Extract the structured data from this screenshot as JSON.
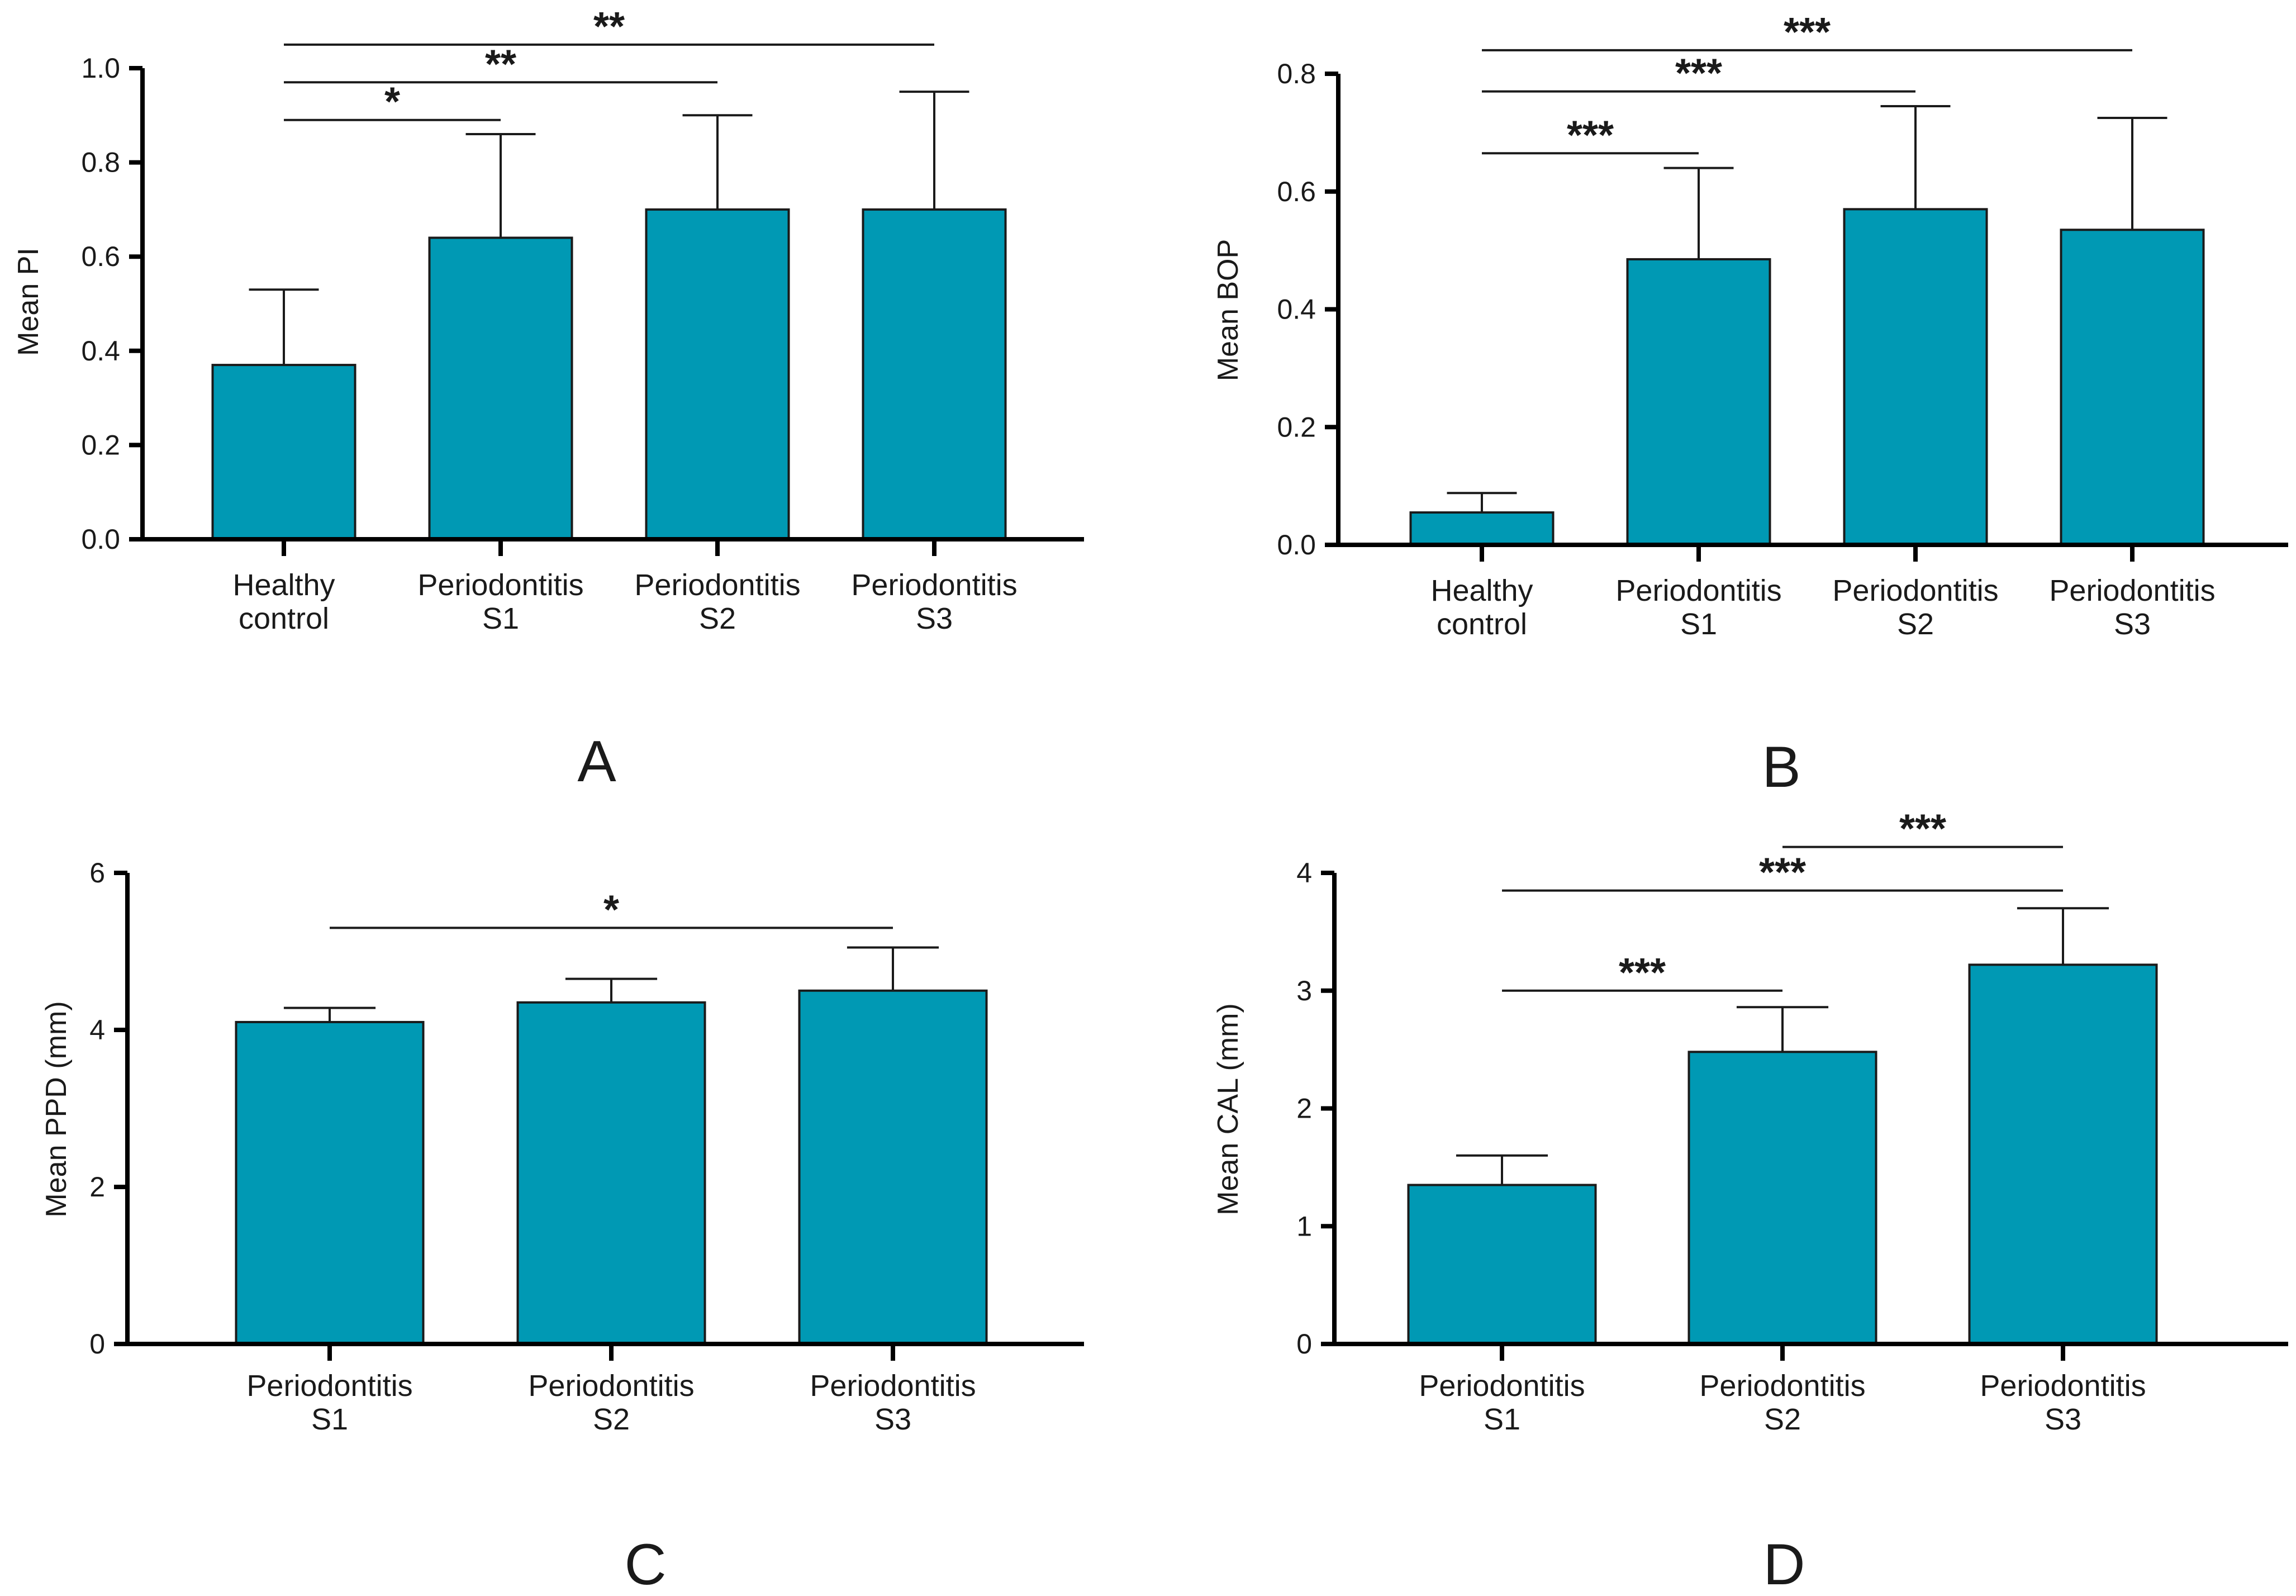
{
  "colors": {
    "bar": "#0099B4",
    "axis": "#000000",
    "text": "#1a1a1a"
  },
  "chart_data": [
    {
      "type": "bar",
      "panel": "A",
      "ylabel": "Mean PI",
      "ylim": [
        0,
        1.0
      ],
      "yticks": [
        0.0,
        0.2,
        0.4,
        0.6,
        0.8,
        1.0
      ],
      "ytick_labels": [
        "0.0",
        "0.2",
        "0.4",
        "0.6",
        "0.8",
        "1.0"
      ],
      "categories": [
        [
          "Healthy",
          "control"
        ],
        [
          "Periodontitis",
          "S1"
        ],
        [
          "Periodontitis",
          "S2"
        ],
        [
          "Periodontitis",
          "S3"
        ]
      ],
      "values": [
        0.37,
        0.64,
        0.7,
        0.7
      ],
      "errors": [
        0.16,
        0.22,
        0.2,
        0.25
      ],
      "significance": [
        {
          "from": 0,
          "to": 1,
          "y": 0.89,
          "label": "*"
        },
        {
          "from": 0,
          "to": 2,
          "y": 0.97,
          "label": "**"
        },
        {
          "from": 0,
          "to": 3,
          "y": 1.05,
          "label": "**"
        }
      ]
    },
    {
      "type": "bar",
      "panel": "B",
      "ylabel": "Mean BOP",
      "ylim": [
        0,
        0.8
      ],
      "yticks": [
        0.0,
        0.2,
        0.4,
        0.6,
        0.8
      ],
      "ytick_labels": [
        "0.0",
        "0.2",
        "0.4",
        "0.6",
        "0.8"
      ],
      "categories": [
        [
          "Healthy",
          "control"
        ],
        [
          "Periodontitis",
          "S1"
        ],
        [
          "Periodontitis",
          "S2"
        ],
        [
          "Periodontitis",
          "S3"
        ]
      ],
      "values": [
        0.055,
        0.485,
        0.57,
        0.535
      ],
      "errors": [
        0.033,
        0.155,
        0.175,
        0.19
      ],
      "significance": [
        {
          "from": 0,
          "to": 1,
          "y": 0.665,
          "label": "***"
        },
        {
          "from": 0,
          "to": 2,
          "y": 0.77,
          "label": "***"
        },
        {
          "from": 0,
          "to": 3,
          "y": 0.84,
          "label": "***"
        }
      ]
    },
    {
      "type": "bar",
      "panel": "C",
      "ylabel": "Mean PPD (mm)",
      "ylim": [
        0,
        6
      ],
      "yticks": [
        0,
        2,
        4,
        6
      ],
      "ytick_labels": [
        "0",
        "2",
        "4",
        "6"
      ],
      "categories": [
        [
          "Periodontitis",
          "S1"
        ],
        [
          "Periodontitis",
          "S2"
        ],
        [
          "Periodontitis",
          "S3"
        ]
      ],
      "values": [
        4.1,
        4.35,
        4.5
      ],
      "errors": [
        0.18,
        0.3,
        0.55
      ],
      "significance": [
        {
          "from": 0,
          "to": 2,
          "y": 5.3,
          "label": "*"
        }
      ]
    },
    {
      "type": "bar",
      "panel": "D",
      "ylabel": "Mean CAL (mm)",
      "ylim": [
        0,
        4
      ],
      "yticks": [
        0,
        1,
        2,
        3,
        4
      ],
      "ytick_labels": [
        "0",
        "1",
        "2",
        "3",
        "4"
      ],
      "categories": [
        [
          "Periodontitis",
          "S1"
        ],
        [
          "Periodontitis",
          "S2"
        ],
        [
          "Periodontitis",
          "S3"
        ]
      ],
      "values": [
        1.35,
        2.48,
        3.22
      ],
      "errors": [
        0.25,
        0.38,
        0.48
      ],
      "significance": [
        {
          "from": 0,
          "to": 1,
          "y": 3.0,
          "label": "***"
        },
        {
          "from": 0,
          "to": 2,
          "y": 3.85,
          "label": "***"
        },
        {
          "from": 1,
          "to": 2,
          "y": 4.22,
          "label": "***"
        }
      ]
    }
  ]
}
